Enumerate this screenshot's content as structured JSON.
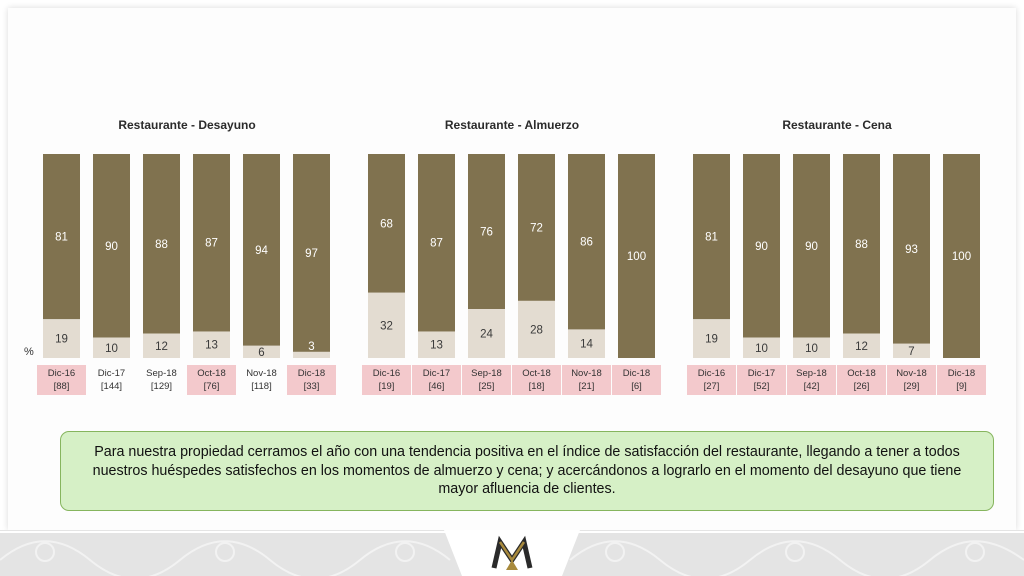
{
  "colors": {
    "dark": "#80724f",
    "light": "#e3dcd1",
    "label_bg": "#f3c9cc",
    "dark_text": "#ffffff",
    "light_text": "#3a3a3a",
    "note_bg": "#d6f0c6",
    "note_border": "#86b55e"
  },
  "percent_symbol": "%",
  "note": "Para nuestra propiedad cerramos el año con una tendencia positiva en el índice de satisfacción del restaurante, llegando a tener a todos nuestros huéspedes satisfechos en los momentos de almuerzo y cena; y acercándonos a lograrlo en el momento del desayuno que tiene mayor afluencia de clientes.",
  "chart_data": [
    {
      "type": "bar",
      "title": "Restaurante - Desayuno",
      "categories": [
        "Dic-16",
        "Dic-17",
        "Sep-18",
        "Oct-18",
        "Nov-18",
        "Dic-18"
      ],
      "counts": [
        "[88]",
        "[144]",
        "[129]",
        "[76]",
        "[118]",
        "[33]"
      ],
      "highlighted": [
        true,
        false,
        false,
        true,
        false,
        true
      ],
      "stacked": true,
      "ylim": [
        0,
        100
      ],
      "series": [
        {
          "color": "#e3dcd1",
          "values": [
            19,
            10,
            12,
            13,
            6,
            3
          ]
        },
        {
          "color": "#80724f",
          "values": [
            81,
            90,
            88,
            87,
            94,
            97
          ]
        }
      ]
    },
    {
      "type": "bar",
      "title": "Restaurante - Almuerzo",
      "categories": [
        "Dic-16",
        "Dic-17",
        "Sep-18",
        "Oct-18",
        "Nov-18",
        "Dic-18"
      ],
      "counts": [
        "[19]",
        "[46]",
        "[25]",
        "[18]",
        "[21]",
        "[6]"
      ],
      "highlighted": [
        true,
        true,
        true,
        true,
        true,
        true
      ],
      "stacked": true,
      "ylim": [
        0,
        100
      ],
      "series": [
        {
          "color": "#e3dcd1",
          "values": [
            32,
            13,
            24,
            28,
            14,
            0
          ]
        },
        {
          "color": "#80724f",
          "values": [
            68,
            87,
            76,
            72,
            86,
            100
          ]
        }
      ]
    },
    {
      "type": "bar",
      "title": "Restaurante - Cena",
      "categories": [
        "Dic-16",
        "Dic-17",
        "Sep-18",
        "Oct-18",
        "Nov-18",
        "Dic-18"
      ],
      "counts": [
        "[27]",
        "[52]",
        "[42]",
        "[26]",
        "[29]",
        "[9]"
      ],
      "highlighted": [
        true,
        true,
        true,
        true,
        true,
        true
      ],
      "stacked": true,
      "ylim": [
        0,
        100
      ],
      "series": [
        {
          "color": "#e3dcd1",
          "values": [
            19,
            10,
            10,
            12,
            7,
            0
          ]
        },
        {
          "color": "#80724f",
          "values": [
            81,
            90,
            90,
            88,
            93,
            100
          ]
        }
      ]
    }
  ]
}
